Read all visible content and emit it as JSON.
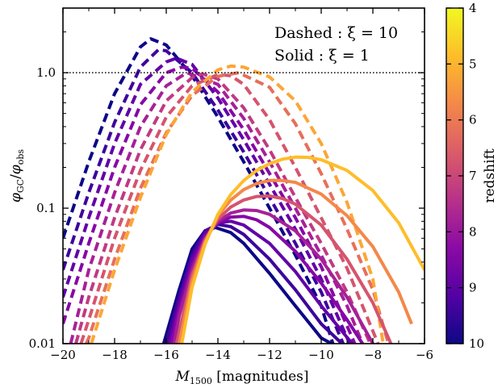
{
  "chart_data": {
    "type": "line",
    "yscale": "log",
    "xlim": [
      -20,
      -6
    ],
    "ylim": [
      0.01,
      3.0
    ],
    "xlabel": "M_1500 [magnitudes]",
    "ylabel": "φ_GC/φ_obs",
    "xticks": [
      -20,
      -18,
      -16,
      -14,
      -12,
      -10,
      -8,
      -6
    ],
    "xtick_labels": [
      "−20",
      "−18",
      "−16",
      "−14",
      "−12",
      "−10",
      "−8",
      "−6"
    ],
    "yticks": [
      0.01,
      0.1,
      1.0
    ],
    "ytick_labels": [
      "0.01",
      "0.1",
      "1.0"
    ],
    "reference_line": {
      "y": 1.0,
      "style": "dotted"
    },
    "annotations": [
      "Dashed : ξ = 10",
      "Solid : ξ = 1"
    ],
    "colorbar": {
      "label": "redshift",
      "min": 4,
      "max": 10,
      "ticks": [
        4,
        5,
        6,
        7,
        8,
        9,
        10
      ],
      "colormap": "plasma",
      "orientation": "top-low"
    },
    "series": [
      {
        "z": 10,
        "color": "#0d0887",
        "style": "dashed",
        "x": [
          -20,
          -19,
          -18,
          -17,
          -16.6,
          -16,
          -15,
          -14,
          -13,
          -12,
          -11,
          -10,
          -9.55
        ],
        "y": [
          0.06,
          0.22,
          0.7,
          1.55,
          1.78,
          1.6,
          0.95,
          0.47,
          0.22,
          0.1,
          0.045,
          0.019,
          0.01
        ]
      },
      {
        "z": 9.5,
        "color": "#3e049c",
        "style": "dashed",
        "x": [
          -20,
          -19,
          -18,
          -17,
          -16.3,
          -16,
          -15,
          -14,
          -13,
          -12,
          -11,
          -10,
          -9.15
        ],
        "y": [
          0.035,
          0.13,
          0.43,
          1.1,
          1.48,
          1.45,
          1.0,
          0.53,
          0.26,
          0.12,
          0.055,
          0.024,
          0.01
        ]
      },
      {
        "z": 9,
        "color": "#6300a7",
        "style": "dashed",
        "x": [
          -20,
          -19,
          -18,
          -17,
          -16,
          -15.6,
          -15,
          -14,
          -13,
          -12,
          -11,
          -10,
          -8.9
        ],
        "y": [
          0.022,
          0.085,
          0.3,
          0.82,
          1.2,
          1.28,
          1.15,
          0.65,
          0.32,
          0.15,
          0.07,
          0.03,
          0.01
        ]
      },
      {
        "z": 8.5,
        "color": "#8707a6",
        "style": "dashed",
        "x": [
          -20,
          -19,
          -18,
          -17,
          -16,
          -15.4,
          -15,
          -14,
          -13,
          -12,
          -11,
          -10,
          -8.7
        ],
        "y": [
          0.014,
          0.055,
          0.2,
          0.58,
          1.0,
          1.1,
          1.08,
          0.72,
          0.38,
          0.18,
          0.085,
          0.037,
          0.01
        ]
      },
      {
        "z": 8,
        "color": "#a62098",
        "style": "dashed",
        "x": [
          -19.7,
          -19,
          -18,
          -17,
          -16,
          -15.2,
          -14,
          -13,
          -12,
          -11,
          -10,
          -9,
          -8.4
        ],
        "y": [
          0.01,
          0.035,
          0.13,
          0.4,
          0.8,
          1.0,
          0.82,
          0.46,
          0.22,
          0.1,
          0.045,
          0.019,
          0.01
        ]
      },
      {
        "z": 7.5,
        "color": "#c03a83",
        "style": "dashed",
        "x": [
          -19.5,
          -19,
          -18,
          -17,
          -16,
          -15,
          -14.6,
          -14,
          -13,
          -12,
          -11,
          -10,
          -9,
          -8.1
        ],
        "y": [
          0.01,
          0.022,
          0.085,
          0.27,
          0.62,
          0.92,
          0.98,
          0.9,
          0.55,
          0.27,
          0.12,
          0.055,
          0.024,
          0.01
        ]
      },
      {
        "z": 7,
        "color": "#d5546e",
        "style": "dashed",
        "x": [
          -19.3,
          -19,
          -18,
          -17,
          -16,
          -15,
          -14,
          -13.5,
          -13,
          -12,
          -11,
          -10,
          -9,
          -7.8
        ],
        "y": [
          0.01,
          0.015,
          0.06,
          0.19,
          0.47,
          0.8,
          0.97,
          0.95,
          0.82,
          0.45,
          0.2,
          0.085,
          0.036,
          0.01
        ]
      },
      {
        "z": 6.5,
        "color": "#e76f5a",
        "style": "dashed",
        "x": [
          -19.1,
          -19,
          -18,
          -17,
          -16,
          -15,
          -14,
          -13.2,
          -12,
          -11,
          -10,
          -9,
          -8,
          -7.4
        ],
        "y": [
          0.01,
          0.011,
          0.042,
          0.14,
          0.36,
          0.68,
          0.94,
          1.0,
          0.78,
          0.42,
          0.18,
          0.07,
          0.025,
          0.01
        ]
      },
      {
        "z": 5.5,
        "color": "#fca636",
        "style": "dashed",
        "x": [
          -18.9,
          -18,
          -17,
          -16,
          -15,
          -14,
          -13.5,
          -13,
          -12,
          -11,
          -10,
          -9,
          -8,
          -7.6
        ],
        "y": [
          0.01,
          0.035,
          0.12,
          0.35,
          0.72,
          1.05,
          1.12,
          1.1,
          0.93,
          0.62,
          0.3,
          0.11,
          0.03,
          0.01
        ]
      },
      {
        "z": 10,
        "color": "#0d0887",
        "style": "solid",
        "x": [
          -16.1,
          -15.5,
          -15,
          -14.5,
          -14.1,
          -13.5,
          -13,
          -12,
          -11,
          -10,
          -9.6
        ],
        "y": [
          0.01,
          0.025,
          0.05,
          0.068,
          0.072,
          0.066,
          0.055,
          0.033,
          0.019,
          0.011,
          0.01
        ]
      },
      {
        "z": 9.5,
        "color": "#3e049c",
        "style": "solid",
        "x": [
          -16.0,
          -15.5,
          -15,
          -14.5,
          -14,
          -13.5,
          -13,
          -12,
          -11,
          -10,
          -9.2
        ],
        "y": [
          0.01,
          0.022,
          0.045,
          0.068,
          0.076,
          0.073,
          0.064,
          0.042,
          0.025,
          0.014,
          0.01
        ]
      },
      {
        "z": 9,
        "color": "#6300a7",
        "style": "solid",
        "x": [
          -15.9,
          -15.5,
          -15,
          -14.5,
          -14,
          -13.5,
          -13,
          -12,
          -11,
          -10,
          -8.8
        ],
        "y": [
          0.01,
          0.02,
          0.042,
          0.065,
          0.078,
          0.08,
          0.075,
          0.055,
          0.034,
          0.019,
          0.01
        ]
      },
      {
        "z": 8.5,
        "color": "#8707a6",
        "style": "solid",
        "x": [
          -15.8,
          -15.5,
          -15,
          -14.5,
          -14,
          -13.5,
          -13,
          -12.5,
          -12,
          -11,
          -10,
          -9,
          -8.4
        ],
        "y": [
          0.01,
          0.018,
          0.038,
          0.062,
          0.078,
          0.086,
          0.087,
          0.082,
          0.072,
          0.048,
          0.028,
          0.015,
          0.01
        ]
      },
      {
        "z": 8,
        "color": "#a62098",
        "style": "solid",
        "x": [
          -15.7,
          -15.5,
          -15,
          -14.5,
          -14,
          -13.5,
          -13,
          -12.5,
          -12,
          -11,
          -10,
          -9,
          -8
        ],
        "y": [
          0.01,
          0.016,
          0.035,
          0.06,
          0.08,
          0.092,
          0.097,
          0.096,
          0.09,
          0.068,
          0.042,
          0.022,
          0.01
        ]
      },
      {
        "z": 7,
        "color": "#d5546e",
        "style": "solid",
        "x": [
          -15.6,
          -15,
          -14.5,
          -14,
          -13.5,
          -13,
          -12.5,
          -12,
          -11.5,
          -11,
          -10,
          -9,
          -8,
          -7.3
        ],
        "y": [
          0.01,
          0.032,
          0.058,
          0.083,
          0.102,
          0.115,
          0.122,
          0.123,
          0.118,
          0.107,
          0.075,
          0.042,
          0.02,
          0.01
        ]
      },
      {
        "z": 6,
        "color": "#f48849",
        "style": "solid",
        "x": [
          -15.5,
          -15,
          -14.5,
          -14,
          -13.5,
          -13,
          -12.5,
          -12,
          -11.5,
          -11,
          -10,
          -9,
          -8,
          -7,
          -6.5
        ],
        "y": [
          0.01,
          0.029,
          0.056,
          0.088,
          0.115,
          0.137,
          0.152,
          0.16,
          0.16,
          0.155,
          0.127,
          0.088,
          0.052,
          0.024,
          0.014
        ]
      },
      {
        "z": 5,
        "color": "#febd2a",
        "style": "solid",
        "x": [
          -15.4,
          -15,
          -14.5,
          -14,
          -13.5,
          -13,
          -12.5,
          -12,
          -11.5,
          -11,
          -10.5,
          -10,
          -9,
          -8,
          -7,
          -6
        ],
        "y": [
          0.01,
          0.026,
          0.054,
          0.09,
          0.126,
          0.16,
          0.19,
          0.213,
          0.23,
          0.238,
          0.237,
          0.228,
          0.19,
          0.135,
          0.078,
          0.035
        ]
      }
    ]
  }
}
